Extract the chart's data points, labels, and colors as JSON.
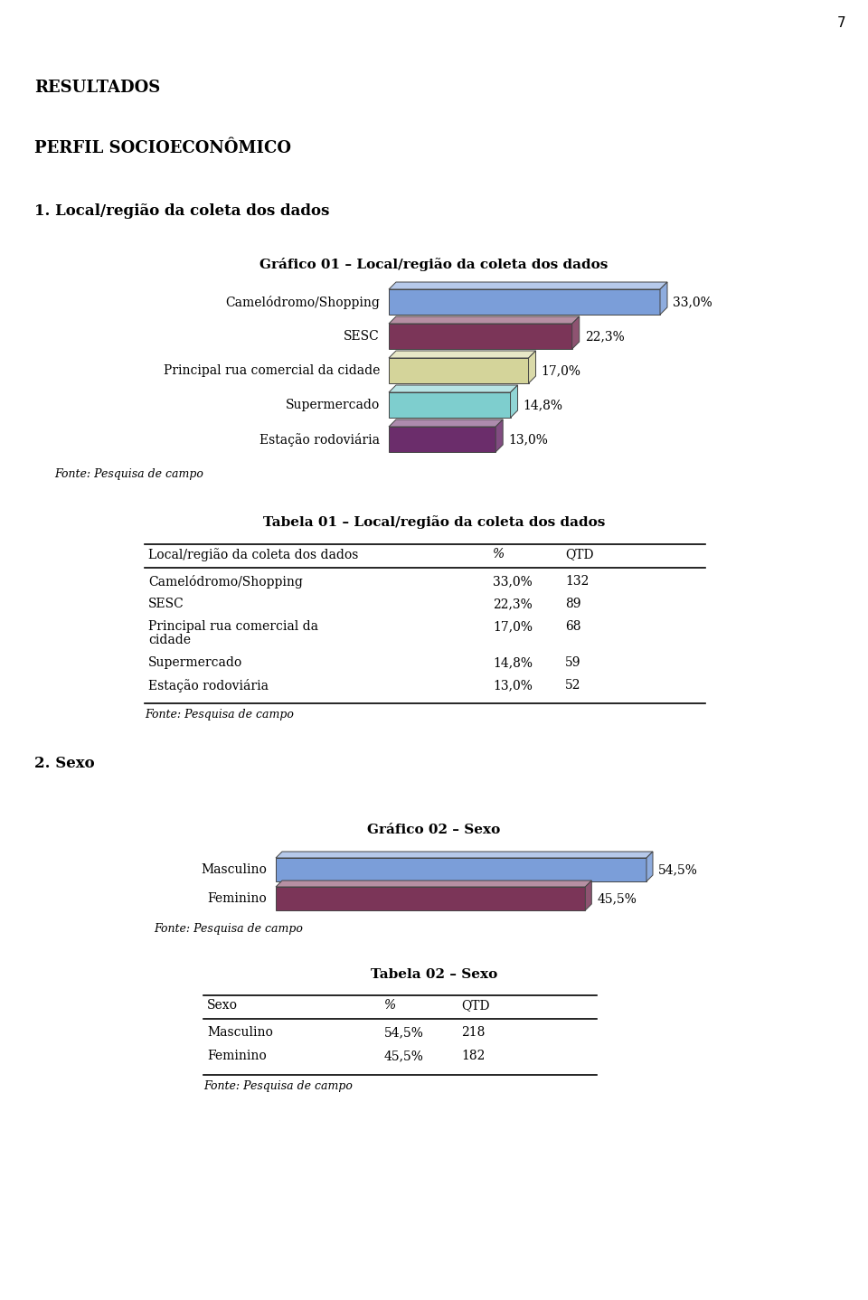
{
  "page_number": "7",
  "section_resultados": "RESULTADOS",
  "section_perfil": "PERFIL SOCIOECONÔMICO",
  "section1_title": "1. Local/região da coleta dos dados",
  "grafico1_title": "Gráfico 01 – Local/região da coleta dos dados",
  "grafico1_labels": [
    "Camelódromo/Shopping",
    "SESC",
    "Principal rua comercial da cidade",
    "Supermercado",
    "Estação rodoviária"
  ],
  "grafico1_values": [
    33.0,
    22.3,
    17.0,
    14.8,
    13.0
  ],
  "grafico1_pct_labels": [
    "33,0%",
    "22,3%",
    "17,0%",
    "14,8%",
    "13,0%"
  ],
  "grafico1_colors": [
    "#7b9ed9",
    "#7b3558",
    "#d4d49a",
    "#7ecece",
    "#6b2d6b"
  ],
  "grafico1_fonte": "Fonte: Pesquisa de campo",
  "tabela1_title": "Tabela 01 – Local/região da coleta dos dados",
  "tabela1_col1": "Local/região da coleta dos dados",
  "tabela1_col2": "%",
  "tabela1_col3": "QTD",
  "tabela1_rows": [
    [
      "Camelódromo/Shopping",
      "33,0%",
      "132"
    ],
    [
      "SESC",
      "22,3%",
      "89"
    ],
    [
      "Principal rua comercial da\ncidade",
      "17,0%",
      "68"
    ],
    [
      "Supermercado",
      "14,8%",
      "59"
    ],
    [
      "Estação rodoviária",
      "13,0%",
      "52"
    ]
  ],
  "tabela1_fonte": "Fonte: Pesquisa de campo",
  "section2_title": "2. Sexo",
  "grafico2_title": "Gráfico 02 – Sexo",
  "grafico2_labels": [
    "Masculino",
    "Feminino"
  ],
  "grafico2_values": [
    54.5,
    45.5
  ],
  "grafico2_pct_labels": [
    "54,5%",
    "45,5%"
  ],
  "grafico2_colors": [
    "#7b9ed9",
    "#7b3558"
  ],
  "grafico2_fonte": "Fonte: Pesquisa de campo",
  "tabela2_title": "Tabela 02 – Sexo",
  "tabela2_col1": "Sexo",
  "tabela2_col2": "%",
  "tabela2_col3": "QTD",
  "tabela2_rows": [
    [
      "Masculino",
      "54,5%",
      "218"
    ],
    [
      "Feminino",
      "45,5%",
      "182"
    ]
  ],
  "tabela2_fonte": "Fonte: Pesquisa de campo",
  "bg_color": "#ffffff",
  "text_color": "#000000"
}
